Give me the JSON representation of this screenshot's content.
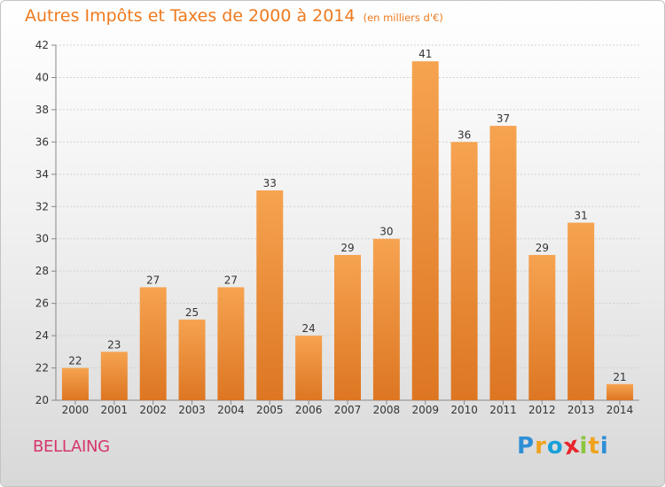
{
  "chart_data": {
    "type": "bar",
    "title": "Autres Impôts et Taxes de 2000 à 2014",
    "subtitle": "(en milliers d'€)",
    "categories": [
      "2000",
      "2001",
      "2002",
      "2003",
      "2004",
      "2005",
      "2006",
      "2007",
      "2008",
      "2009",
      "2010",
      "2011",
      "2012",
      "2013",
      "2014"
    ],
    "values": [
      22,
      23,
      27,
      25,
      27,
      33,
      24,
      29,
      30,
      41,
      36,
      37,
      29,
      31,
      21
    ],
    "ylim": [
      20,
      42
    ],
    "yticks": [
      20,
      22,
      24,
      26,
      28,
      30,
      32,
      34,
      36,
      38,
      40,
      42
    ],
    "grid": true,
    "bar_color": "#f0933e"
  },
  "place_name": "BELLAING",
  "logo": {
    "text": "Proxiti",
    "letters": [
      {
        "char": "P",
        "color": "#2f8fd6"
      },
      {
        "char": "r",
        "color": "#f0a21c"
      },
      {
        "char": "o",
        "color": "#1aa0d8"
      },
      {
        "char": "x",
        "color": "#e8262c"
      },
      {
        "char": "i",
        "color": "#8cc63f"
      },
      {
        "char": "t",
        "color": "#f0a21c"
      },
      {
        "char": "i",
        "color": "#2f8fd6"
      }
    ]
  }
}
